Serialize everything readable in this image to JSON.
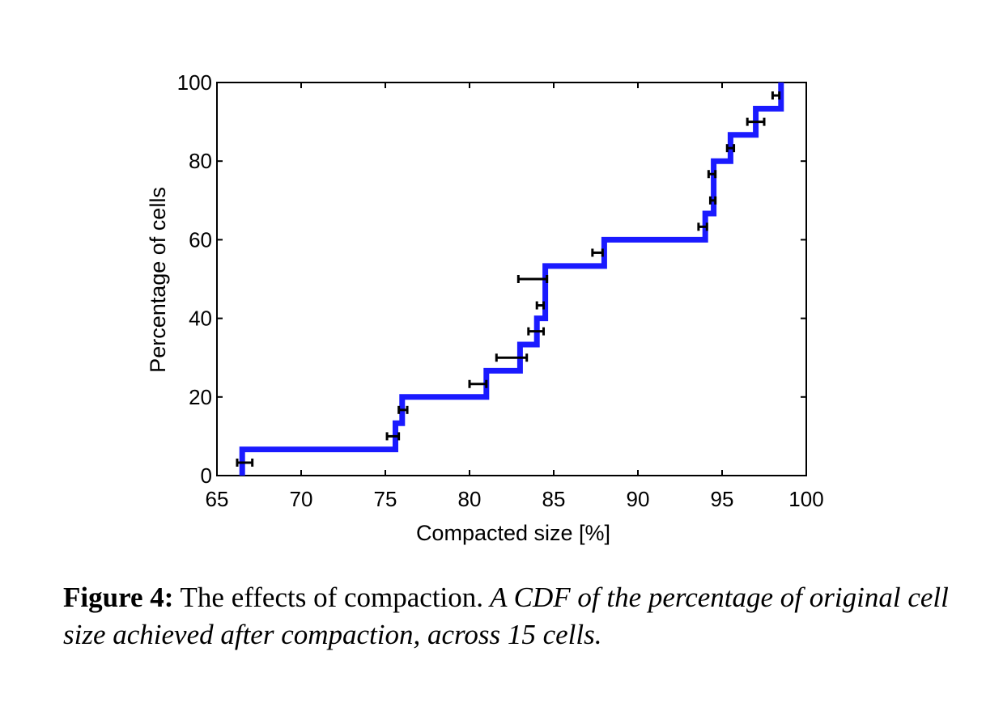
{
  "chart_data": {
    "type": "line",
    "xlabel": "Compacted size [%]",
    "ylabel": "Percentage of cells",
    "xlim": [
      65,
      100
    ],
    "ylim": [
      0,
      100
    ],
    "xticks": [
      65,
      70,
      75,
      80,
      85,
      90,
      95,
      100
    ],
    "yticks": [
      0,
      20,
      40,
      60,
      80,
      100
    ],
    "grid": false,
    "series": [
      {
        "type": "step",
        "color": "#1a1aff",
        "x": [
          66.5,
          75.6,
          76.0,
          81.0,
          83.0,
          84.0,
          84.5,
          88.0,
          94.0,
          94.5,
          95.5,
          97.0,
          98.5
        ],
        "y": [
          6.67,
          13.33,
          20.0,
          26.67,
          33.33,
          40.0,
          53.33,
          60.0,
          66.67,
          80.0,
          86.67,
          93.33,
          100.0
        ]
      }
    ],
    "error_bars": {
      "color": "#000000",
      "points": [
        {
          "x": 66.6,
          "y": 3.3,
          "xmin": 66.2,
          "xmax": 67.1
        },
        {
          "x": 75.4,
          "y": 10.0,
          "xmin": 75.1,
          "xmax": 75.8
        },
        {
          "x": 76.0,
          "y": 16.7,
          "xmin": 75.8,
          "xmax": 76.3
        },
        {
          "x": 80.5,
          "y": 23.3,
          "xmin": 80.0,
          "xmax": 81.0
        },
        {
          "x": 82.5,
          "y": 30.0,
          "xmin": 81.6,
          "xmax": 83.4
        },
        {
          "x": 84.0,
          "y": 36.7,
          "xmin": 83.5,
          "xmax": 84.4
        },
        {
          "x": 84.2,
          "y": 43.3,
          "xmin": 84.0,
          "xmax": 84.4
        },
        {
          "x": 83.8,
          "y": 50.0,
          "xmin": 82.9,
          "xmax": 84.6
        },
        {
          "x": 87.6,
          "y": 56.7,
          "xmin": 87.3,
          "xmax": 87.9
        },
        {
          "x": 93.8,
          "y": 63.3,
          "xmin": 93.6,
          "xmax": 94.1
        },
        {
          "x": 94.5,
          "y": 70.0,
          "xmin": 94.3,
          "xmax": 94.6
        },
        {
          "x": 94.4,
          "y": 76.7,
          "xmin": 94.2,
          "xmax": 94.6
        },
        {
          "x": 95.5,
          "y": 83.3,
          "xmin": 95.3,
          "xmax": 95.7
        },
        {
          "x": 97.0,
          "y": 90.0,
          "xmin": 96.5,
          "xmax": 97.5
        },
        {
          "x": 98.2,
          "y": 96.7,
          "xmin": 98.0,
          "xmax": 98.4
        }
      ]
    }
  },
  "caption": {
    "label": "Figure 4:",
    "title": " The effects of compaction.",
    "text": " A CDF of the percentage of original cell size achieved after compaction, across 15 cells."
  }
}
